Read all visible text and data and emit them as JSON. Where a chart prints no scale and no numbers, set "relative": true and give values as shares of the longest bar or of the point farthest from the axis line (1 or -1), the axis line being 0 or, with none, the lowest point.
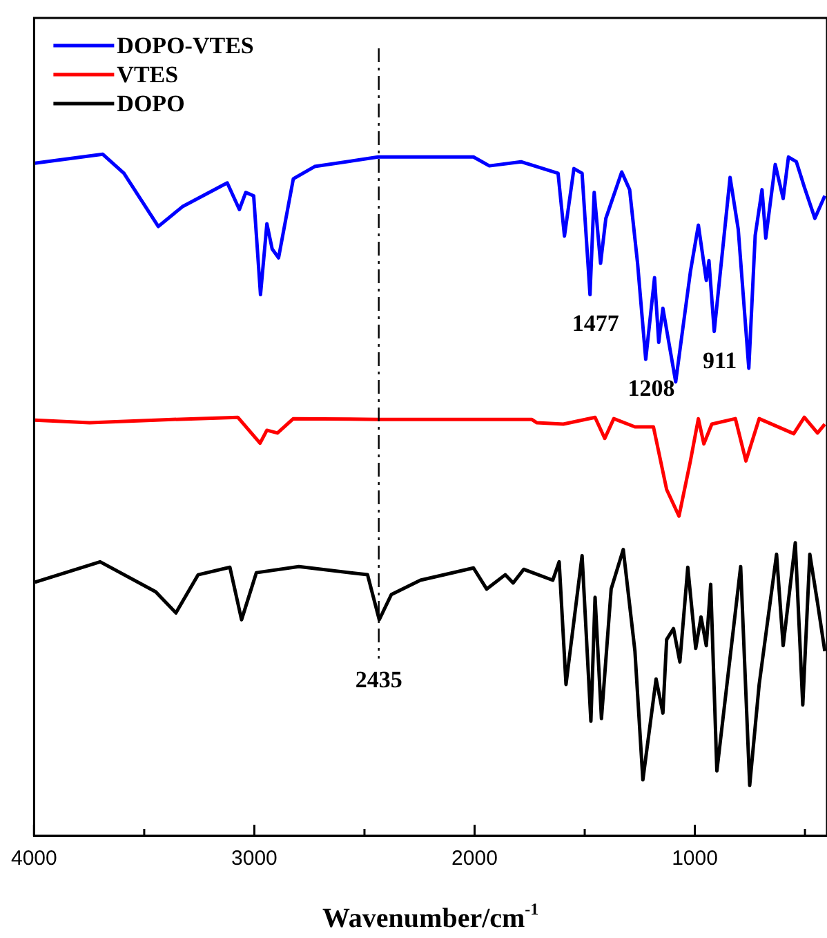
{
  "chart_data": {
    "type": "line",
    "xlabel": "Wavenumber/cm$^{-1}$",
    "relative": true,
    "legend": "top left",
    "xlim": [
      4000,
      400
    ],
    "xticks": [
      4000,
      {
        "value": 3500,
        "label": null
      },
      3000,
      {
        "value": 2500,
        "label": null
      },
      2000,
      {
        "value": 1500,
        "label": null
      },
      1000,
      {
        "value": 500,
        "label": null
      }
    ],
    "series": [
      {
        "name": "DOPO-VTES",
        "color": "#0000ff",
        "x": [
          3996,
          3688,
          3592,
          3436,
          3327,
          3123,
          3068,
          3039,
          3003,
          2972,
          2943,
          2919,
          2890,
          2823,
          2726,
          2438,
          2005,
          1933,
          1789,
          1621,
          1592,
          1549,
          1512,
          1476,
          1457,
          1428,
          1404,
          1332,
          1296,
          1260,
          1223,
          1183,
          1164,
          1145,
          1087,
          1020,
          984,
          948,
          936,
          912,
          840,
          803,
          755,
          726,
          695,
          678,
          635,
          599,
          575,
          539,
          503,
          455,
          410
        ],
        "values": [
          0.987,
          1.0,
          0.972,
          0.894,
          0.923,
          0.958,
          0.919,
          0.944,
          0.939,
          0.794,
          0.898,
          0.861,
          0.848,
          0.964,
          0.982,
          0.996,
          0.996,
          0.983,
          0.989,
          0.972,
          0.88,
          0.979,
          0.972,
          0.794,
          0.944,
          0.84,
          0.906,
          0.974,
          0.948,
          0.84,
          0.699,
          0.819,
          0.724,
          0.774,
          0.666,
          0.828,
          0.896,
          0.815,
          0.844,
          0.74,
          0.966,
          0.89,
          0.686,
          0.881,
          0.948,
          0.877,
          0.985,
          0.935,
          0.996,
          0.989,
          0.952,
          0.906,
          0.939
        ]
      },
      {
        "name": "VTES",
        "color": "#ff0000",
        "x": [
          3996,
          3748,
          3448,
          3075,
          2974,
          2943,
          2895,
          2823,
          2438,
          1741,
          1717,
          1597,
          1453,
          1409,
          1368,
          1272,
          1188,
          1128,
          1072,
          1020,
          984,
          959,
          923,
          816,
          768,
          708,
          551,
          503,
          443,
          410
        ],
        "values": [
          0.61,
          0.606,
          0.61,
          0.614,
          0.576,
          0.595,
          0.591,
          0.612,
          0.611,
          0.611,
          0.606,
          0.604,
          0.614,
          0.583,
          0.612,
          0.6,
          0.6,
          0.508,
          0.469,
          0.55,
          0.612,
          0.575,
          0.604,
          0.612,
          0.55,
          0.612,
          0.59,
          0.614,
          0.591,
          0.604
        ]
      },
      {
        "name": "DOPO",
        "color": "#000000",
        "x": [
          3996,
          3700,
          3448,
          3356,
          3255,
          3111,
          3058,
          2991,
          2798,
          2486,
          2433,
          2378,
          2246,
          2005,
          1945,
          1861,
          1825,
          1777,
          1645,
          1616,
          1585,
          1512,
          1472,
          1453,
          1424,
          1380,
          1325,
          1272,
          1236,
          1176,
          1145,
          1128,
          1097,
          1068,
          1032,
          996,
          972,
          948,
          928,
          900,
          792,
          751,
          708,
          629,
          599,
          544,
          510,
          478,
          443,
          410
        ],
        "values": [
          0.372,
          0.402,
          0.358,
          0.327,
          0.383,
          0.394,
          0.317,
          0.386,
          0.395,
          0.383,
          0.317,
          0.354,
          0.375,
          0.393,
          0.362,
          0.383,
          0.371,
          0.391,
          0.375,
          0.402,
          0.222,
          0.411,
          0.168,
          0.35,
          0.172,
          0.362,
          0.42,
          0.271,
          0.082,
          0.23,
          0.18,
          0.288,
          0.304,
          0.255,
          0.394,
          0.275,
          0.321,
          0.279,
          0.369,
          0.095,
          0.395,
          0.074,
          0.222,
          0.413,
          0.279,
          0.43,
          0.192,
          0.413,
          0.342,
          0.271
        ]
      }
    ],
    "ref_lines": [
      {
        "axis": "x",
        "value": 2435,
        "label": "2435",
        "color": "#000000",
        "line_style": "dashed"
      }
    ],
    "annotations": [
      {
        "text": "1477",
        "x": 1476,
        "y": 0.794
      },
      {
        "text": "1208",
        "x": 1223,
        "y": 0.699
      },
      {
        "text": "911",
        "x": 912,
        "y": 0.74
      }
    ]
  }
}
